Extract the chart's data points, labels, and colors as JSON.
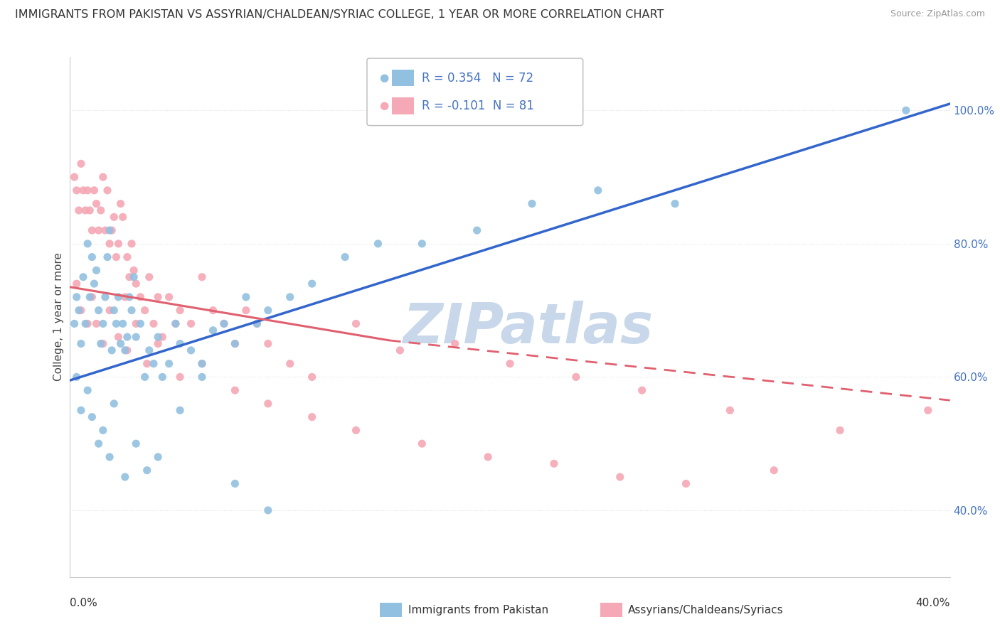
{
  "title": "IMMIGRANTS FROM PAKISTAN VS ASSYRIAN/CHALDEAN/SYRIAC COLLEGE, 1 YEAR OR MORE CORRELATION CHART",
  "source": "Source: ZipAtlas.com",
  "ylabel": "College, 1 year or more",
  "legend_blue_r": "R = 0.354",
  "legend_blue_n": "N = 72",
  "legend_pink_r": "R = -0.101",
  "legend_pink_n": "N = 81",
  "legend_blue_label": "Immigrants from Pakistan",
  "legend_pink_label": "Assyrians/Chaldeans/Syriacs",
  "blue_color": "#92C0E0",
  "pink_color": "#F5A8B5",
  "blue_line_color": "#3366CC",
  "pink_line_color": "#E06070",
  "watermark": "ZIPatlas",
  "watermark_color": "#C8D8EA",
  "xmin": 0.0,
  "xmax": 0.4,
  "ymin": 0.3,
  "ymax": 1.08,
  "blue_line_x0": 0.0,
  "blue_line_y0": 0.595,
  "blue_line_x1": 0.4,
  "blue_line_y1": 1.01,
  "pink_line_solid_x0": 0.0,
  "pink_line_solid_y0": 0.735,
  "pink_line_solid_x1": 0.145,
  "pink_line_solid_y1": 0.655,
  "pink_line_dash_x0": 0.145,
  "pink_line_dash_y0": 0.655,
  "pink_line_dash_x1": 0.4,
  "pink_line_dash_y1": 0.565,
  "blue_pts_x": [
    0.002,
    0.003,
    0.004,
    0.005,
    0.006,
    0.007,
    0.008,
    0.009,
    0.01,
    0.011,
    0.012,
    0.013,
    0.014,
    0.015,
    0.016,
    0.017,
    0.018,
    0.019,
    0.02,
    0.021,
    0.022,
    0.023,
    0.024,
    0.025,
    0.026,
    0.027,
    0.028,
    0.029,
    0.03,
    0.032,
    0.034,
    0.036,
    0.038,
    0.04,
    0.042,
    0.045,
    0.048,
    0.05,
    0.055,
    0.06,
    0.065,
    0.07,
    0.075,
    0.08,
    0.085,
    0.09,
    0.1,
    0.11,
    0.125,
    0.14,
    0.16,
    0.185,
    0.21,
    0.24,
    0.275,
    0.38,
    0.003,
    0.005,
    0.008,
    0.01,
    0.013,
    0.015,
    0.018,
    0.02,
    0.025,
    0.03,
    0.035,
    0.04,
    0.05,
    0.06,
    0.075,
    0.09
  ],
  "blue_pts_y": [
    0.68,
    0.72,
    0.7,
    0.65,
    0.75,
    0.68,
    0.8,
    0.72,
    0.78,
    0.74,
    0.76,
    0.7,
    0.65,
    0.68,
    0.72,
    0.78,
    0.82,
    0.64,
    0.7,
    0.68,
    0.72,
    0.65,
    0.68,
    0.64,
    0.66,
    0.72,
    0.7,
    0.75,
    0.66,
    0.68,
    0.6,
    0.64,
    0.62,
    0.66,
    0.6,
    0.62,
    0.68,
    0.65,
    0.64,
    0.62,
    0.67,
    0.68,
    0.65,
    0.72,
    0.68,
    0.7,
    0.72,
    0.74,
    0.78,
    0.8,
    0.8,
    0.82,
    0.86,
    0.88,
    0.86,
    1.0,
    0.6,
    0.55,
    0.58,
    0.54,
    0.5,
    0.52,
    0.48,
    0.56,
    0.45,
    0.5,
    0.46,
    0.48,
    0.55,
    0.6,
    0.44,
    0.4
  ],
  "pink_pts_x": [
    0.002,
    0.003,
    0.004,
    0.005,
    0.006,
    0.007,
    0.008,
    0.009,
    0.01,
    0.011,
    0.012,
    0.013,
    0.014,
    0.015,
    0.016,
    0.017,
    0.018,
    0.019,
    0.02,
    0.021,
    0.022,
    0.023,
    0.024,
    0.025,
    0.026,
    0.027,
    0.028,
    0.029,
    0.03,
    0.032,
    0.034,
    0.036,
    0.038,
    0.04,
    0.042,
    0.045,
    0.048,
    0.05,
    0.055,
    0.06,
    0.065,
    0.07,
    0.075,
    0.08,
    0.085,
    0.09,
    0.1,
    0.11,
    0.13,
    0.15,
    0.175,
    0.2,
    0.23,
    0.26,
    0.3,
    0.35,
    0.39,
    0.003,
    0.005,
    0.008,
    0.01,
    0.012,
    0.015,
    0.018,
    0.022,
    0.026,
    0.03,
    0.035,
    0.04,
    0.05,
    0.06,
    0.075,
    0.09,
    0.11,
    0.13,
    0.16,
    0.19,
    0.22,
    0.25,
    0.28,
    0.32
  ],
  "pink_pts_y": [
    0.9,
    0.88,
    0.85,
    0.92,
    0.88,
    0.85,
    0.88,
    0.85,
    0.82,
    0.88,
    0.86,
    0.82,
    0.85,
    0.9,
    0.82,
    0.88,
    0.8,
    0.82,
    0.84,
    0.78,
    0.8,
    0.86,
    0.84,
    0.72,
    0.78,
    0.75,
    0.8,
    0.76,
    0.74,
    0.72,
    0.7,
    0.75,
    0.68,
    0.72,
    0.66,
    0.72,
    0.68,
    0.7,
    0.68,
    0.75,
    0.7,
    0.68,
    0.65,
    0.7,
    0.68,
    0.65,
    0.62,
    0.6,
    0.68,
    0.64,
    0.65,
    0.62,
    0.6,
    0.58,
    0.55,
    0.52,
    0.55,
    0.74,
    0.7,
    0.68,
    0.72,
    0.68,
    0.65,
    0.7,
    0.66,
    0.64,
    0.68,
    0.62,
    0.65,
    0.6,
    0.62,
    0.58,
    0.56,
    0.54,
    0.52,
    0.5,
    0.48,
    0.47,
    0.45,
    0.44,
    0.46
  ]
}
